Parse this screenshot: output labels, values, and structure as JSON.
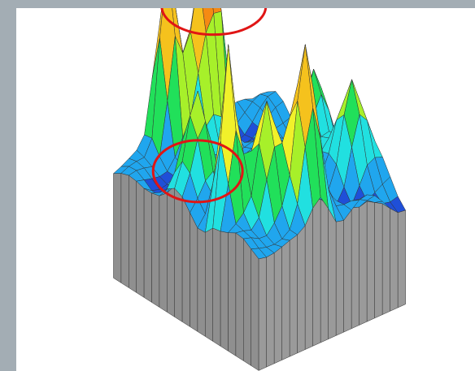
{
  "chart_data": {
    "type": "surface-3d",
    "title": "",
    "xlabel": "",
    "ylabel": "",
    "zlabel": "",
    "grid_size": [
      20,
      20
    ],
    "z_range": [
      0,
      1
    ],
    "colormap": [
      "#1f4fd8",
      "#20a6ee",
      "#21e0e0",
      "#21e05a",
      "#a7f02a",
      "#f1f12a",
      "#f5c21d",
      "#f58a13",
      "#ee2b14"
    ],
    "peaks": [
      {
        "row": 2,
        "col": 8,
        "height": 0.92
      },
      {
        "row": 2,
        "col": 10,
        "height": 0.65
      },
      {
        "row": 1,
        "col": 13,
        "height": 1.0
      },
      {
        "row": 9,
        "col": 2,
        "height": 0.38
      },
      {
        "row": 14,
        "col": 2,
        "height": 0.42
      },
      {
        "row": 17,
        "col": 11,
        "height": 0.8
      },
      {
        "row": 13,
        "col": 17,
        "height": 0.88
      },
      {
        "row": 15,
        "col": 14,
        "height": 0.6
      },
      {
        "row": 8,
        "col": 16,
        "height": 0.45
      }
    ],
    "annotations": [
      {
        "shape": "ellipse",
        "label": "",
        "around_peak": 0
      },
      {
        "shape": "ellipse",
        "label": "",
        "around_peak": 8
      }
    ],
    "base_color": "#8f8f8f",
    "annotation_color": "#e01515"
  }
}
